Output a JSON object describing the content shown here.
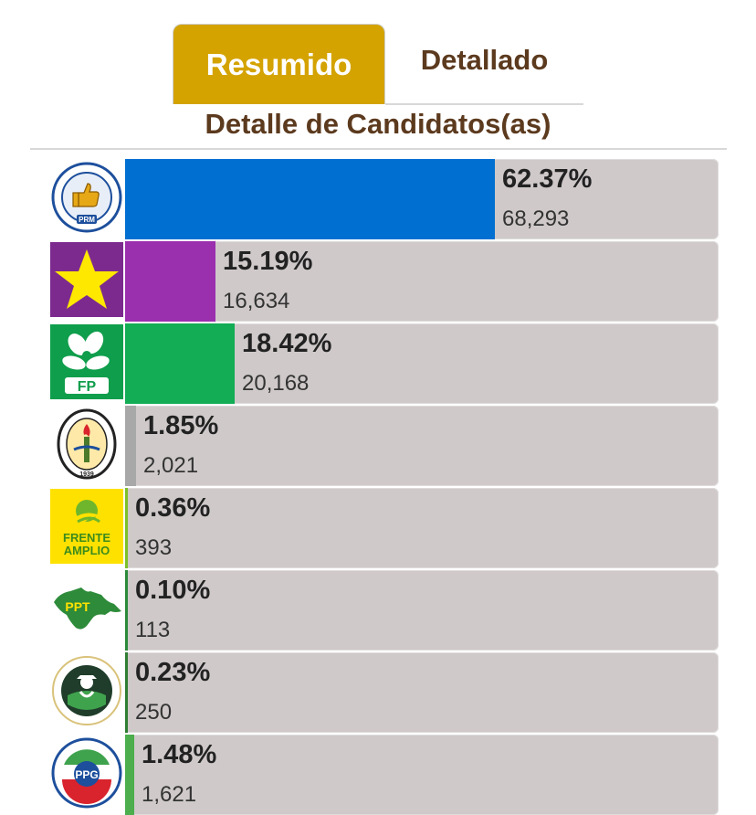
{
  "tabs": {
    "summary": "Resumido",
    "detailed": "Detallado"
  },
  "section_title": "Detalle de Candidatos(as)",
  "colors": {
    "tab_active": "#d4a300",
    "heading": "#5c3a1e",
    "track": "#cfc9c9"
  },
  "candidates": [
    {
      "party_logo": "PRM",
      "logo_icon": "thumbs-up-seal-icon",
      "percent_text": "62.37%",
      "votes_text": "68,293",
      "share": 0.6237,
      "color": "#006fd2"
    },
    {
      "party_logo": "",
      "logo_icon": "yellow-star-icon",
      "percent_text": "15.19%",
      "votes_text": "16,634",
      "share": 0.1519,
      "color": "#9a30ae"
    },
    {
      "party_logo": "FP",
      "logo_icon": "white-flower-icon",
      "percent_text": "18.42%",
      "votes_text": "20,168",
      "share": 0.1842,
      "color": "#12ad55"
    },
    {
      "party_logo": "1939",
      "logo_icon": "torch-seal-icon",
      "percent_text": "1.85%",
      "votes_text": "2,021",
      "share": 0.0185,
      "color": "#a8a8a8"
    },
    {
      "party_logo": "FRENTE AMPLIO",
      "logo_icon": "sun-leaf-icon",
      "percent_text": "0.36%",
      "votes_text": "393",
      "share": 0.0036,
      "color": "#7cbf2a"
    },
    {
      "party_logo": "PPT",
      "logo_icon": "island-map-icon",
      "percent_text": "0.10%",
      "votes_text": "113",
      "share": 0.001,
      "color": "#2a8a3a"
    },
    {
      "party_logo": "",
      "logo_icon": "farmer-seal-icon",
      "percent_text": "0.23%",
      "votes_text": "250",
      "share": 0.0023,
      "color": "#2e7d32"
    },
    {
      "party_logo": "PPG",
      "logo_icon": "hands-seal-icon",
      "percent_text": "1.48%",
      "votes_text": "1,621",
      "share": 0.0148,
      "color": "#4cae4c"
    }
  ]
}
